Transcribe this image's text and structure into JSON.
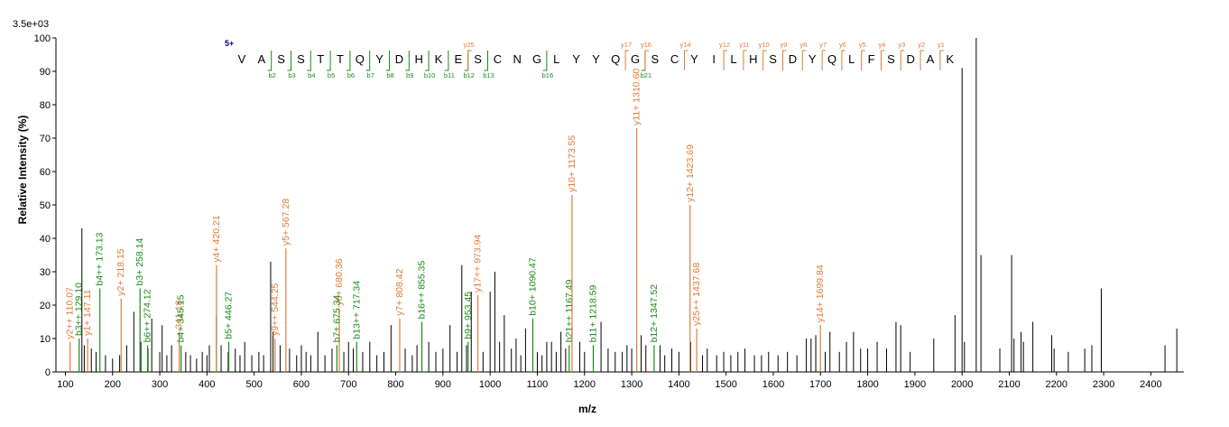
{
  "chart_data": {
    "type": "bar",
    "scale_label": "3.5e+03",
    "xlabel": "m/z",
    "ylabel": "Relative   Intensity (%)",
    "xlim": [
      80,
      2470
    ],
    "ylim": [
      0,
      100
    ],
    "x_ticks": [
      100,
      200,
      300,
      400,
      500,
      600,
      700,
      800,
      900,
      1000,
      1100,
      1200,
      1300,
      1400,
      1500,
      1600,
      1700,
      1800,
      1900,
      2000,
      2100,
      2200,
      2300,
      2400
    ],
    "y_ticks": [
      0,
      10,
      20,
      30,
      40,
      50,
      60,
      70,
      80,
      90,
      100
    ],
    "colors": {
      "y_ion": "#e07b39",
      "b_ion": "#1a8a1a",
      "unmatched": "#000000",
      "charge": "#00008b"
    },
    "sequence": {
      "charge": "5+",
      "residues": [
        "V",
        "A",
        "S",
        "S",
        "T",
        "T",
        "Q",
        "Y",
        "D",
        "H",
        "K",
        "E",
        "S",
        "C",
        "N",
        "G",
        "L",
        "Y",
        "Y",
        "Q",
        "G",
        "S",
        "C",
        "Y",
        "I",
        "L",
        "H",
        "S",
        "D",
        "Y",
        "Q",
        "L",
        "F",
        "S",
        "D",
        "A",
        "K"
      ],
      "y_tags": [
        {
          "label": "y25",
          "pos": 12
        },
        {
          "label": "y17",
          "pos": 20
        },
        {
          "label": "y16",
          "pos": 21
        },
        {
          "label": "y14",
          "pos": 23
        },
        {
          "label": "y12",
          "pos": 25
        },
        {
          "label": "y11",
          "pos": 26
        },
        {
          "label": "y10",
          "pos": 27
        },
        {
          "label": "y9",
          "pos": 28
        },
        {
          "label": "y8",
          "pos": 29
        },
        {
          "label": "y7",
          "pos": 30
        },
        {
          "label": "y6",
          "pos": 31
        },
        {
          "label": "y5",
          "pos": 32
        },
        {
          "label": "y4",
          "pos": 33
        },
        {
          "label": "y3",
          "pos": 34
        },
        {
          "label": "y2",
          "pos": 35
        },
        {
          "label": "y1",
          "pos": 36
        }
      ],
      "b_tags": [
        {
          "label": "b2",
          "pos": 2
        },
        {
          "label": "b3",
          "pos": 3
        },
        {
          "label": "b4",
          "pos": 4
        },
        {
          "label": "b5",
          "pos": 5
        },
        {
          "label": "b6",
          "pos": 6
        },
        {
          "label": "b7",
          "pos": 7
        },
        {
          "label": "b8",
          "pos": 8
        },
        {
          "label": "b9",
          "pos": 9
        },
        {
          "label": "b10",
          "pos": 10
        },
        {
          "label": "b11",
          "pos": 11
        },
        {
          "label": "b12",
          "pos": 12
        },
        {
          "label": "b13",
          "pos": 13
        },
        {
          "label": "b16",
          "pos": 16
        },
        {
          "label": "b21",
          "pos": 21
        }
      ]
    },
    "labeled_peaks": [
      {
        "label": "y2++ 110.07",
        "mz": 110.07,
        "intensity": 9,
        "ion": "y"
      },
      {
        "label": "b3++ 129.10",
        "mz": 129.1,
        "intensity": 10,
        "ion": "b"
      },
      {
        "label": "y1+ 147.11",
        "mz": 147.11,
        "intensity": 10,
        "ion": "y"
      },
      {
        "label": "b4++ 173.13",
        "mz": 173.13,
        "intensity": 25,
        "ion": "b"
      },
      {
        "label": "y2+ 218.15",
        "mz": 218.15,
        "intensity": 22,
        "ion": "y"
      },
      {
        "label": "b3+ 258.14",
        "mz": 258.14,
        "intensity": 25,
        "ion": "b"
      },
      {
        "label": "b6++ 274.12",
        "mz": 274.12,
        "intensity": 8,
        "ion": "b"
      },
      {
        "label": "341.18",
        "mz": 341.18,
        "intensity": 12,
        "ion": "y"
      },
      {
        "label": "b4+ 345.15",
        "mz": 345.15,
        "intensity": 8,
        "ion": "b"
      },
      {
        "label": "y4+ 420.21",
        "mz": 420.21,
        "intensity": 32,
        "ion": "y"
      },
      {
        "label": "b5+ 446.27",
        "mz": 446.27,
        "intensity": 9,
        "ion": "b"
      },
      {
        "label": "y9++ 544.25",
        "mz": 544.25,
        "intensity": 10,
        "ion": "y"
      },
      {
        "label": "y5+ 567.28",
        "mz": 567.28,
        "intensity": 37,
        "ion": "y"
      },
      {
        "label": "y6+ 680.36",
        "mz": 680.36,
        "intensity": 19,
        "ion": "y"
      },
      {
        "label": "b7+ 675.34",
        "mz": 675.34,
        "intensity": 8,
        "ion": "b"
      },
      {
        "label": "b13++ 717.34",
        "mz": 717.34,
        "intensity": 9,
        "ion": "b"
      },
      {
        "label": "y7+ 808.42",
        "mz": 808.42,
        "intensity": 16,
        "ion": "y"
      },
      {
        "label": "b16++ 855.35",
        "mz": 855.35,
        "intensity": 15,
        "ion": "b"
      },
      {
        "label": "b9+ 953.45",
        "mz": 953.45,
        "intensity": 9,
        "ion": "b"
      },
      {
        "label": "y17++ 973.94",
        "mz": 973.94,
        "intensity": 23,
        "ion": "y"
      },
      {
        "label": "b10+ 1090.47",
        "mz": 1090.47,
        "intensity": 16,
        "ion": "b"
      },
      {
        "label": "b21++ 1167.49",
        "mz": 1167.49,
        "intensity": 8,
        "ion": "b"
      },
      {
        "label": "y10+ 1173.55",
        "mz": 1173.55,
        "intensity": 53,
        "ion": "y"
      },
      {
        "label": "b11+ 1218.59",
        "mz": 1218.59,
        "intensity": 8,
        "ion": "b"
      },
      {
        "label": "y11+ 1310.60",
        "mz": 1310.6,
        "intensity": 73,
        "ion": "y"
      },
      {
        "label": "b12+ 1347.52",
        "mz": 1347.52,
        "intensity": 8,
        "ion": "b"
      },
      {
        "label": "y12+ 1423.69",
        "mz": 1423.69,
        "intensity": 50,
        "ion": "y"
      },
      {
        "label": "y25++ 1437.68",
        "mz": 1437.68,
        "intensity": 13,
        "ion": "y"
      },
      {
        "label": "y14+ 1699.84",
        "mz": 1699.84,
        "intensity": 14,
        "ion": "y"
      }
    ],
    "unlabeled_peaks": [
      [
        135,
        43
      ],
      [
        140,
        8
      ],
      [
        155,
        7
      ],
      [
        165,
        6
      ],
      [
        185,
        5
      ],
      [
        200,
        4
      ],
      [
        215,
        5
      ],
      [
        230,
        8
      ],
      [
        245,
        18
      ],
      [
        260,
        9
      ],
      [
        275,
        7
      ],
      [
        283,
        16
      ],
      [
        300,
        6
      ],
      [
        305,
        14
      ],
      [
        315,
        5
      ],
      [
        325,
        8
      ],
      [
        355,
        6
      ],
      [
        365,
        5
      ],
      [
        378,
        4
      ],
      [
        390,
        6
      ],
      [
        400,
        5
      ],
      [
        405,
        8
      ],
      [
        420,
        17
      ],
      [
        430,
        8
      ],
      [
        445,
        6
      ],
      [
        460,
        7
      ],
      [
        470,
        5
      ],
      [
        480,
        9
      ],
      [
        495,
        5
      ],
      [
        510,
        6
      ],
      [
        520,
        5
      ],
      [
        535,
        33
      ],
      [
        540,
        12
      ],
      [
        555,
        8
      ],
      [
        575,
        7
      ],
      [
        590,
        5
      ],
      [
        600,
        8
      ],
      [
        610,
        6
      ],
      [
        620,
        5
      ],
      [
        635,
        12
      ],
      [
        650,
        5
      ],
      [
        665,
        7
      ],
      [
        690,
        6
      ],
      [
        700,
        9
      ],
      [
        710,
        7
      ],
      [
        730,
        6
      ],
      [
        745,
        9
      ],
      [
        760,
        5
      ],
      [
        775,
        6
      ],
      [
        790,
        14
      ],
      [
        820,
        7
      ],
      [
        835,
        5
      ],
      [
        845,
        8
      ],
      [
        870,
        9
      ],
      [
        885,
        6
      ],
      [
        900,
        7
      ],
      [
        915,
        14
      ],
      [
        930,
        6
      ],
      [
        940,
        32
      ],
      [
        950,
        8
      ],
      [
        960,
        24
      ],
      [
        985,
        6
      ],
      [
        1000,
        24
      ],
      [
        1010,
        30
      ],
      [
        1020,
        9
      ],
      [
        1030,
        17
      ],
      [
        1045,
        7
      ],
      [
        1055,
        10
      ],
      [
        1065,
        5
      ],
      [
        1075,
        13
      ],
      [
        1100,
        6
      ],
      [
        1110,
        5
      ],
      [
        1120,
        9
      ],
      [
        1130,
        9
      ],
      [
        1140,
        6
      ],
      [
        1150,
        12
      ],
      [
        1160,
        7
      ],
      [
        1190,
        9
      ],
      [
        1200,
        6
      ],
      [
        1235,
        15
      ],
      [
        1250,
        7
      ],
      [
        1265,
        6
      ],
      [
        1280,
        6
      ],
      [
        1290,
        8
      ],
      [
        1300,
        7
      ],
      [
        1320,
        11
      ],
      [
        1330,
        8
      ],
      [
        1360,
        8
      ],
      [
        1370,
        5
      ],
      [
        1385,
        7
      ],
      [
        1400,
        6
      ],
      [
        1425,
        9
      ],
      [
        1450,
        5
      ],
      [
        1460,
        7
      ],
      [
        1480,
        5
      ],
      [
        1495,
        6
      ],
      [
        1510,
        5
      ],
      [
        1525,
        6
      ],
      [
        1540,
        7
      ],
      [
        1560,
        5
      ],
      [
        1575,
        5
      ],
      [
        1590,
        6
      ],
      [
        1610,
        5
      ],
      [
        1630,
        6
      ],
      [
        1650,
        5
      ],
      [
        1670,
        10
      ],
      [
        1680,
        10
      ],
      [
        1690,
        11
      ],
      [
        1710,
        6
      ],
      [
        1720,
        12
      ],
      [
        1740,
        6
      ],
      [
        1755,
        9
      ],
      [
        1770,
        12
      ],
      [
        1785,
        7
      ],
      [
        1800,
        7
      ],
      [
        1820,
        9
      ],
      [
        1840,
        7
      ],
      [
        1860,
        15
      ],
      [
        1870,
        14
      ],
      [
        1890,
        6
      ],
      [
        1940,
        10
      ],
      [
        1985,
        17
      ],
      [
        2000,
        91
      ],
      [
        2005,
        9
      ],
      [
        2030,
        100
      ],
      [
        2040,
        35
      ],
      [
        2080,
        7
      ],
      [
        2105,
        35
      ],
      [
        2110,
        10
      ],
      [
        2125,
        12
      ],
      [
        2130,
        9
      ],
      [
        2150,
        15
      ],
      [
        2190,
        11
      ],
      [
        2195,
        7
      ],
      [
        2225,
        6
      ],
      [
        2260,
        7
      ],
      [
        2275,
        8
      ],
      [
        2295,
        25
      ],
      [
        2430,
        8
      ],
      [
        2455,
        13
      ]
    ]
  }
}
